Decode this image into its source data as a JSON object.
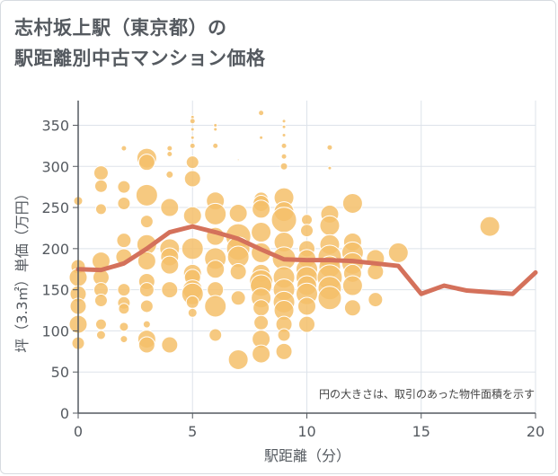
{
  "title_line1": "志村坂上駅（東京都）の",
  "title_line2": "駅距離別中古マンション価格",
  "colors": {
    "bubble": "#f5c06a",
    "bubble_stroke": "#ffffff",
    "line": "#d4715b",
    "grid": "#dde3ea",
    "axis": "#555a60",
    "frame": "#d7dbe0"
  },
  "chart_data": {
    "type": "scatter",
    "title": "志村坂上駅（東京都）の駅距離別中古マンション価格",
    "xlabel": "駅距離（分）",
    "ylabel": "坪（3.3㎡）単価（万円）",
    "xlim": [
      0,
      20
    ],
    "ylim": [
      0,
      380
    ],
    "xticks": [
      "0",
      "5",
      "10",
      "15",
      "20"
    ],
    "yticks": [
      "0",
      "50",
      "100",
      "150",
      "200",
      "250",
      "300",
      "350"
    ],
    "xtick_values": [
      0,
      5,
      10,
      15,
      20
    ],
    "ytick_values": [
      0,
      50,
      100,
      150,
      200,
      250,
      300,
      350
    ],
    "grid": true,
    "note": "円の大きさは、取引のあった物件面積を示す",
    "bubbles": [
      {
        "x": 0,
        "y": 258,
        "s": 5
      },
      {
        "x": 0,
        "y": 178,
        "s": 8
      },
      {
        "x": 0,
        "y": 165,
        "s": 10
      },
      {
        "x": 0,
        "y": 145,
        "s": 9
      },
      {
        "x": 0,
        "y": 130,
        "s": 9
      },
      {
        "x": 0,
        "y": 108,
        "s": 10
      },
      {
        "x": 0,
        "y": 85,
        "s": 7
      },
      {
        "x": 1,
        "y": 292,
        "s": 8
      },
      {
        "x": 1,
        "y": 276,
        "s": 7
      },
      {
        "x": 1,
        "y": 248,
        "s": 6
      },
      {
        "x": 1,
        "y": 185,
        "s": 10
      },
      {
        "x": 1,
        "y": 165,
        "s": 9
      },
      {
        "x": 1,
        "y": 150,
        "s": 8
      },
      {
        "x": 1,
        "y": 137,
        "s": 7
      },
      {
        "x": 1,
        "y": 108,
        "s": 6
      },
      {
        "x": 1,
        "y": 95,
        "s": 5
      },
      {
        "x": 2,
        "y": 322,
        "s": 3
      },
      {
        "x": 2,
        "y": 275,
        "s": 7
      },
      {
        "x": 2,
        "y": 255,
        "s": 7
      },
      {
        "x": 2,
        "y": 210,
        "s": 8
      },
      {
        "x": 2,
        "y": 190,
        "s": 9
      },
      {
        "x": 2,
        "y": 150,
        "s": 7
      },
      {
        "x": 2,
        "y": 134,
        "s": 7
      },
      {
        "x": 2,
        "y": 127,
        "s": 6
      },
      {
        "x": 2,
        "y": 105,
        "s": 5
      },
      {
        "x": 2,
        "y": 90,
        "s": 4
      },
      {
        "x": 3,
        "y": 310,
        "s": 11
      },
      {
        "x": 3,
        "y": 305,
        "s": 9
      },
      {
        "x": 3,
        "y": 265,
        "s": 12
      },
      {
        "x": 3,
        "y": 233,
        "s": 7
      },
      {
        "x": 3,
        "y": 205,
        "s": 11
      },
      {
        "x": 3,
        "y": 185,
        "s": 10
      },
      {
        "x": 3,
        "y": 160,
        "s": 9
      },
      {
        "x": 3,
        "y": 150,
        "s": 8
      },
      {
        "x": 3,
        "y": 130,
        "s": 7
      },
      {
        "x": 3,
        "y": 108,
        "s": 4
      },
      {
        "x": 3,
        "y": 90,
        "s": 10
      },
      {
        "x": 3,
        "y": 83,
        "s": 9
      },
      {
        "x": 4,
        "y": 322,
        "s": 3
      },
      {
        "x": 4,
        "y": 315,
        "s": 3
      },
      {
        "x": 4,
        "y": 290,
        "s": 4
      },
      {
        "x": 4,
        "y": 250,
        "s": 10
      },
      {
        "x": 4,
        "y": 200,
        "s": 11
      },
      {
        "x": 4,
        "y": 190,
        "s": 10
      },
      {
        "x": 4,
        "y": 180,
        "s": 10
      },
      {
        "x": 4,
        "y": 150,
        "s": 9
      },
      {
        "x": 4,
        "y": 83,
        "s": 9
      },
      {
        "x": 5,
        "y": 360,
        "s": 2
      },
      {
        "x": 5,
        "y": 355,
        "s": 3
      },
      {
        "x": 5,
        "y": 345,
        "s": 2
      },
      {
        "x": 5,
        "y": 335,
        "s": 2
      },
      {
        "x": 5,
        "y": 325,
        "s": 3
      },
      {
        "x": 5,
        "y": 305,
        "s": 7
      },
      {
        "x": 5,
        "y": 285,
        "s": 9
      },
      {
        "x": 5,
        "y": 240,
        "s": 10
      },
      {
        "x": 5,
        "y": 200,
        "s": 12
      },
      {
        "x": 5,
        "y": 170,
        "s": 10
      },
      {
        "x": 5,
        "y": 165,
        "s": 9
      },
      {
        "x": 5,
        "y": 150,
        "s": 11
      },
      {
        "x": 5,
        "y": 145,
        "s": 12
      },
      {
        "x": 5,
        "y": 135,
        "s": 7
      },
      {
        "x": 5,
        "y": 122,
        "s": 5
      },
      {
        "x": 6,
        "y": 350,
        "s": 2
      },
      {
        "x": 6,
        "y": 345,
        "s": 2
      },
      {
        "x": 6,
        "y": 325,
        "s": 3
      },
      {
        "x": 6,
        "y": 258,
        "s": 10
      },
      {
        "x": 6,
        "y": 242,
        "s": 12
      },
      {
        "x": 6,
        "y": 215,
        "s": 10
      },
      {
        "x": 6,
        "y": 188,
        "s": 12
      },
      {
        "x": 6,
        "y": 175,
        "s": 10
      },
      {
        "x": 6,
        "y": 150,
        "s": 9
      },
      {
        "x": 6,
        "y": 130,
        "s": 12
      },
      {
        "x": 6,
        "y": 95,
        "s": 7
      },
      {
        "x": 7,
        "y": 308,
        "s": 1
      },
      {
        "x": 7,
        "y": 243,
        "s": 10
      },
      {
        "x": 7,
        "y": 215,
        "s": 14
      },
      {
        "x": 7,
        "y": 200,
        "s": 13
      },
      {
        "x": 7,
        "y": 190,
        "s": 12
      },
      {
        "x": 7,
        "y": 172,
        "s": 9
      },
      {
        "x": 7,
        "y": 140,
        "s": 8
      },
      {
        "x": 7,
        "y": 65,
        "s": 11
      },
      {
        "x": 8,
        "y": 365,
        "s": 3
      },
      {
        "x": 8,
        "y": 335,
        "s": 2
      },
      {
        "x": 8,
        "y": 260,
        "s": 8
      },
      {
        "x": 8,
        "y": 255,
        "s": 9
      },
      {
        "x": 8,
        "y": 248,
        "s": 10
      },
      {
        "x": 8,
        "y": 220,
        "s": 11
      },
      {
        "x": 8,
        "y": 195,
        "s": 11
      },
      {
        "x": 8,
        "y": 170,
        "s": 10
      },
      {
        "x": 8,
        "y": 160,
        "s": 13
      },
      {
        "x": 8,
        "y": 155,
        "s": 12
      },
      {
        "x": 8,
        "y": 140,
        "s": 11
      },
      {
        "x": 8,
        "y": 128,
        "s": 9
      },
      {
        "x": 8,
        "y": 110,
        "s": 8
      },
      {
        "x": 8,
        "y": 90,
        "s": 10
      },
      {
        "x": 8,
        "y": 72,
        "s": 10
      },
      {
        "x": 9,
        "y": 355,
        "s": 2
      },
      {
        "x": 9,
        "y": 348,
        "s": 2
      },
      {
        "x": 9,
        "y": 338,
        "s": 2
      },
      {
        "x": 9,
        "y": 325,
        "s": 3
      },
      {
        "x": 9,
        "y": 312,
        "s": 3
      },
      {
        "x": 9,
        "y": 300,
        "s": 4
      },
      {
        "x": 9,
        "y": 262,
        "s": 11
      },
      {
        "x": 9,
        "y": 245,
        "s": 11
      },
      {
        "x": 9,
        "y": 235,
        "s": 14
      },
      {
        "x": 9,
        "y": 208,
        "s": 11
      },
      {
        "x": 9,
        "y": 188,
        "s": 13
      },
      {
        "x": 9,
        "y": 165,
        "s": 12
      },
      {
        "x": 9,
        "y": 150,
        "s": 12
      },
      {
        "x": 9,
        "y": 135,
        "s": 12
      },
      {
        "x": 9,
        "y": 125,
        "s": 11
      },
      {
        "x": 9,
        "y": 108,
        "s": 9
      },
      {
        "x": 9,
        "y": 95,
        "s": 7
      },
      {
        "x": 9,
        "y": 75,
        "s": 9
      },
      {
        "x": 10,
        "y": 235,
        "s": 6
      },
      {
        "x": 10,
        "y": 222,
        "s": 7
      },
      {
        "x": 10,
        "y": 200,
        "s": 9
      },
      {
        "x": 10,
        "y": 188,
        "s": 10
      },
      {
        "x": 10,
        "y": 175,
        "s": 12
      },
      {
        "x": 10,
        "y": 165,
        "s": 12
      },
      {
        "x": 10,
        "y": 155,
        "s": 11
      },
      {
        "x": 10,
        "y": 145,
        "s": 12
      },
      {
        "x": 10,
        "y": 130,
        "s": 10
      },
      {
        "x": 10,
        "y": 108,
        "s": 9
      },
      {
        "x": 11,
        "y": 323,
        "s": 3
      },
      {
        "x": 11,
        "y": 298,
        "s": 2
      },
      {
        "x": 11,
        "y": 242,
        "s": 10
      },
      {
        "x": 11,
        "y": 228,
        "s": 11
      },
      {
        "x": 11,
        "y": 205,
        "s": 11
      },
      {
        "x": 11,
        "y": 190,
        "s": 13
      },
      {
        "x": 11,
        "y": 178,
        "s": 12
      },
      {
        "x": 11,
        "y": 165,
        "s": 14
      },
      {
        "x": 11,
        "y": 152,
        "s": 13
      },
      {
        "x": 11,
        "y": 140,
        "s": 13
      },
      {
        "x": 12,
        "y": 255,
        "s": 11
      },
      {
        "x": 12,
        "y": 208,
        "s": 10
      },
      {
        "x": 12,
        "y": 195,
        "s": 12
      },
      {
        "x": 12,
        "y": 182,
        "s": 12
      },
      {
        "x": 12,
        "y": 170,
        "s": 10
      },
      {
        "x": 12,
        "y": 155,
        "s": 11
      },
      {
        "x": 12,
        "y": 128,
        "s": 9
      },
      {
        "x": 13,
        "y": 188,
        "s": 10
      },
      {
        "x": 13,
        "y": 172,
        "s": 9
      },
      {
        "x": 13,
        "y": 138,
        "s": 8
      },
      {
        "x": 14,
        "y": 195,
        "s": 11
      },
      {
        "x": 18,
        "y": 227,
        "s": 11
      }
    ],
    "series": [
      {
        "x": [
          0,
          1,
          2,
          3,
          4,
          5,
          6,
          7,
          8,
          9,
          10,
          11,
          12,
          13,
          14,
          15,
          16,
          17,
          18,
          19,
          20
        ],
        "values": [
          175,
          174,
          182,
          200,
          220,
          227,
          220,
          212,
          199,
          187,
          186,
          186,
          185,
          182,
          179,
          145,
          155,
          149,
          147,
          145,
          171
        ]
      }
    ]
  }
}
